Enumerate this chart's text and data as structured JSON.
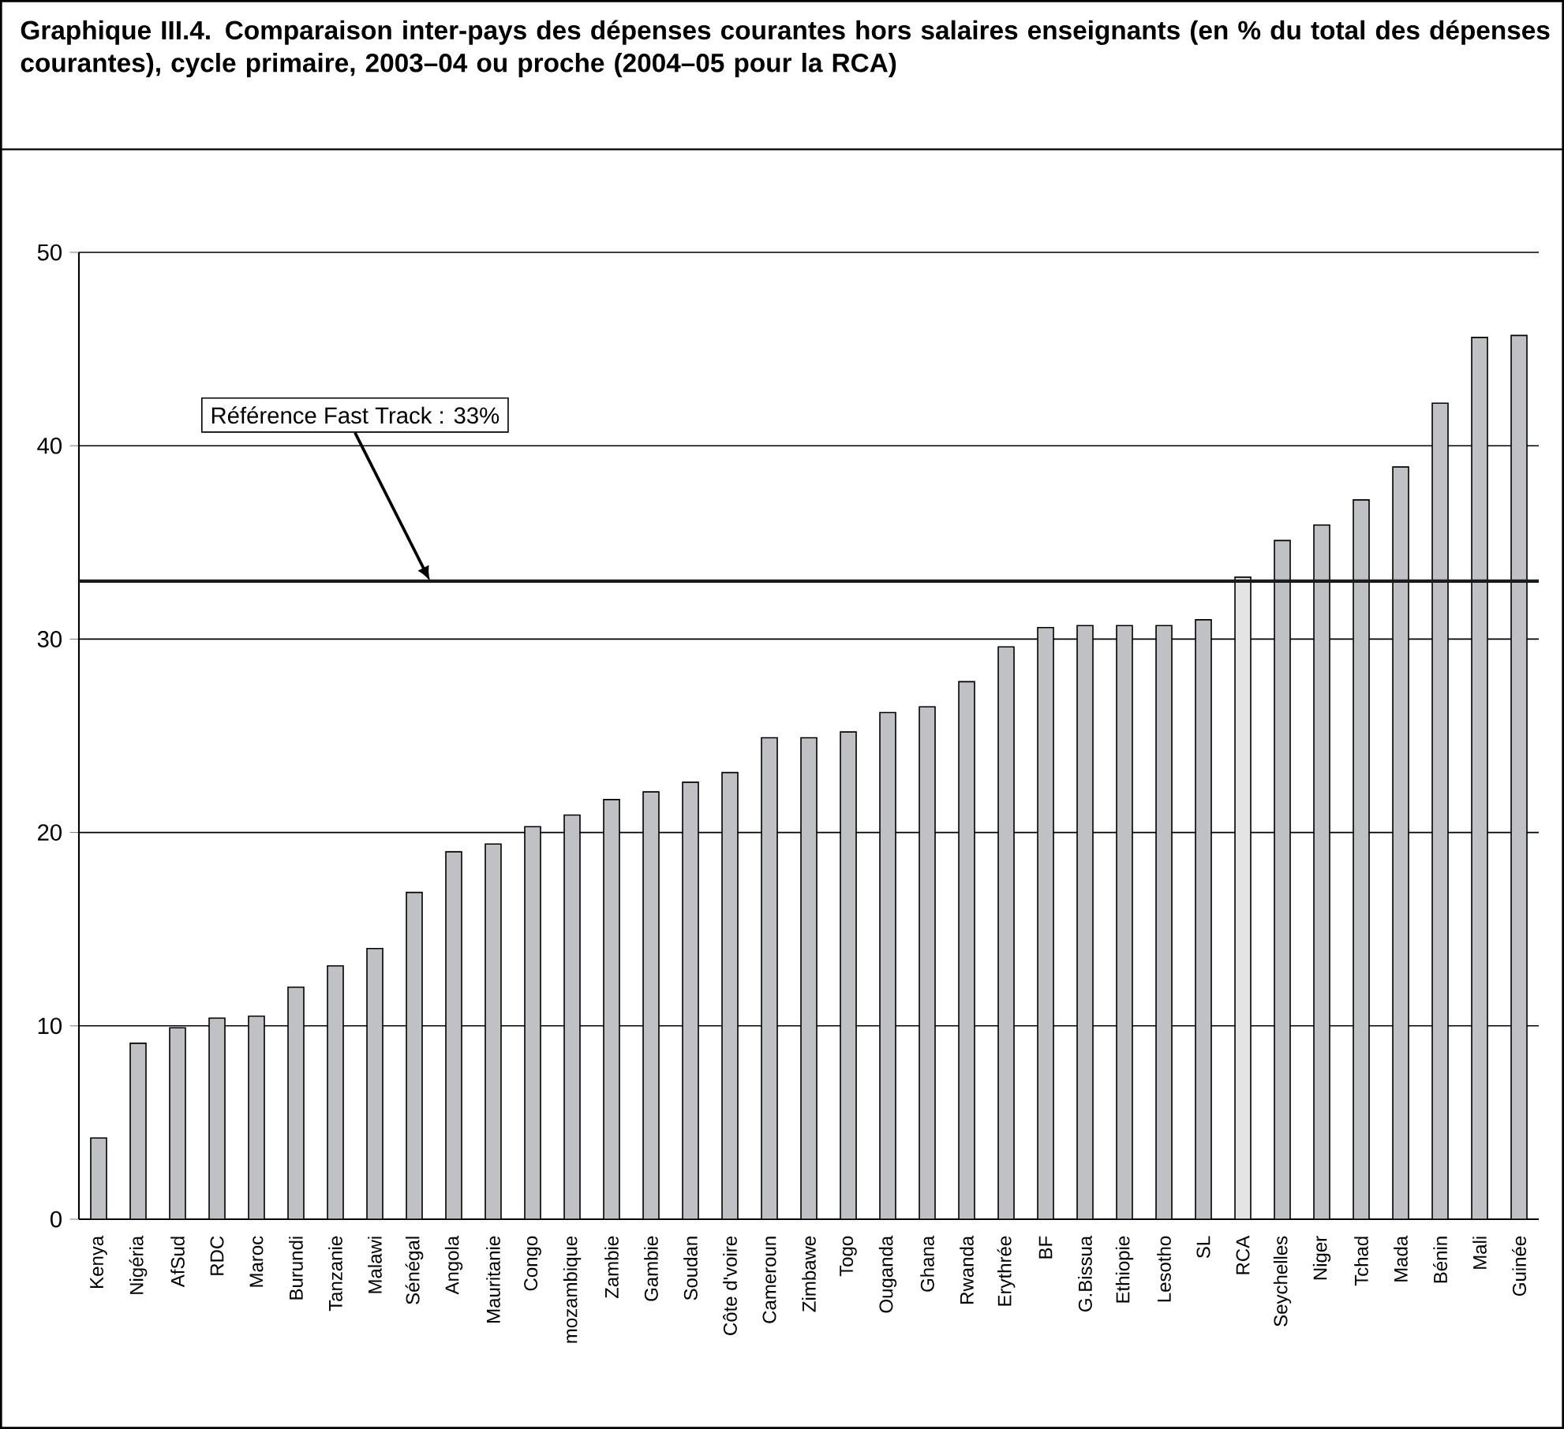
{
  "chart_data": {
    "type": "bar",
    "title": "Graphique III.4. Comparaison inter-pays des dépenses courantes hors salaires enseignants (en % du total des dépenses courantes), cycle primaire, 2003–04 ou proche (2004–05 pour la RCA)",
    "categories": [
      "Kenya",
      "Nigéria",
      "AfSud",
      "RDC",
      "Maroc",
      "Burundi",
      "Tanzanie",
      "Malawi",
      "Sénégal",
      "Angola",
      "Mauritanie",
      "Congo",
      "mozambique",
      "Zambie",
      "Gambie",
      "Soudan",
      "Côte d'voire",
      "Cameroun",
      "Zimbawe",
      "Togo",
      "Ouganda",
      "Ghana",
      "Rwanda",
      "Erythrée",
      "BF",
      "G.Bissua",
      "Ethiopie",
      "Lesotho",
      "SL",
      "RCA",
      "Seychelles",
      "Niger",
      "Tchad",
      "Mada",
      "Bénin",
      "Mali",
      "Guinée"
    ],
    "values": [
      4.2,
      9.1,
      9.9,
      10.4,
      10.5,
      12.0,
      13.1,
      14.0,
      16.9,
      19.0,
      19.4,
      20.3,
      20.9,
      21.7,
      22.1,
      22.6,
      23.1,
      24.9,
      24.9,
      25.2,
      26.2,
      26.5,
      27.8,
      29.6,
      30.6,
      30.7,
      30.7,
      30.7,
      31.0,
      33.2,
      35.1,
      35.9,
      37.2,
      38.9,
      42.2,
      45.6,
      45.7
    ],
    "colors": [
      "#c0c1c4",
      "#c0c1c4",
      "#c0c1c4",
      "#c0c1c4",
      "#c0c1c4",
      "#c0c1c4",
      "#c0c1c4",
      "#c0c1c4",
      "#c0c1c4",
      "#c0c1c4",
      "#c0c1c4",
      "#c0c1c4",
      "#c0c1c4",
      "#c0c1c4",
      "#c0c1c4",
      "#c0c1c4",
      "#c0c1c4",
      "#c0c1c4",
      "#c0c1c4",
      "#c0c1c4",
      "#c0c1c4",
      "#c0c1c4",
      "#c0c1c4",
      "#c0c1c4",
      "#c0c1c4",
      "#c0c1c4",
      "#c0c1c4",
      "#c0c1c4",
      "#c0c1c4",
      "#e4e4e4",
      "#c0c1c4",
      "#c0c1c4",
      "#c0c1c4",
      "#c0c1c4",
      "#c0c1c4",
      "#c0c1c4",
      "#c0c1c4"
    ],
    "ylim": [
      0,
      50
    ],
    "yticks": [
      0,
      10,
      20,
      30,
      40,
      50
    ],
    "grid": "y",
    "ref_lines": [
      {
        "axis": "y",
        "value": 33,
        "label": "Référence Fast Track : 33%",
        "color": "#1a1a1a"
      }
    ]
  }
}
